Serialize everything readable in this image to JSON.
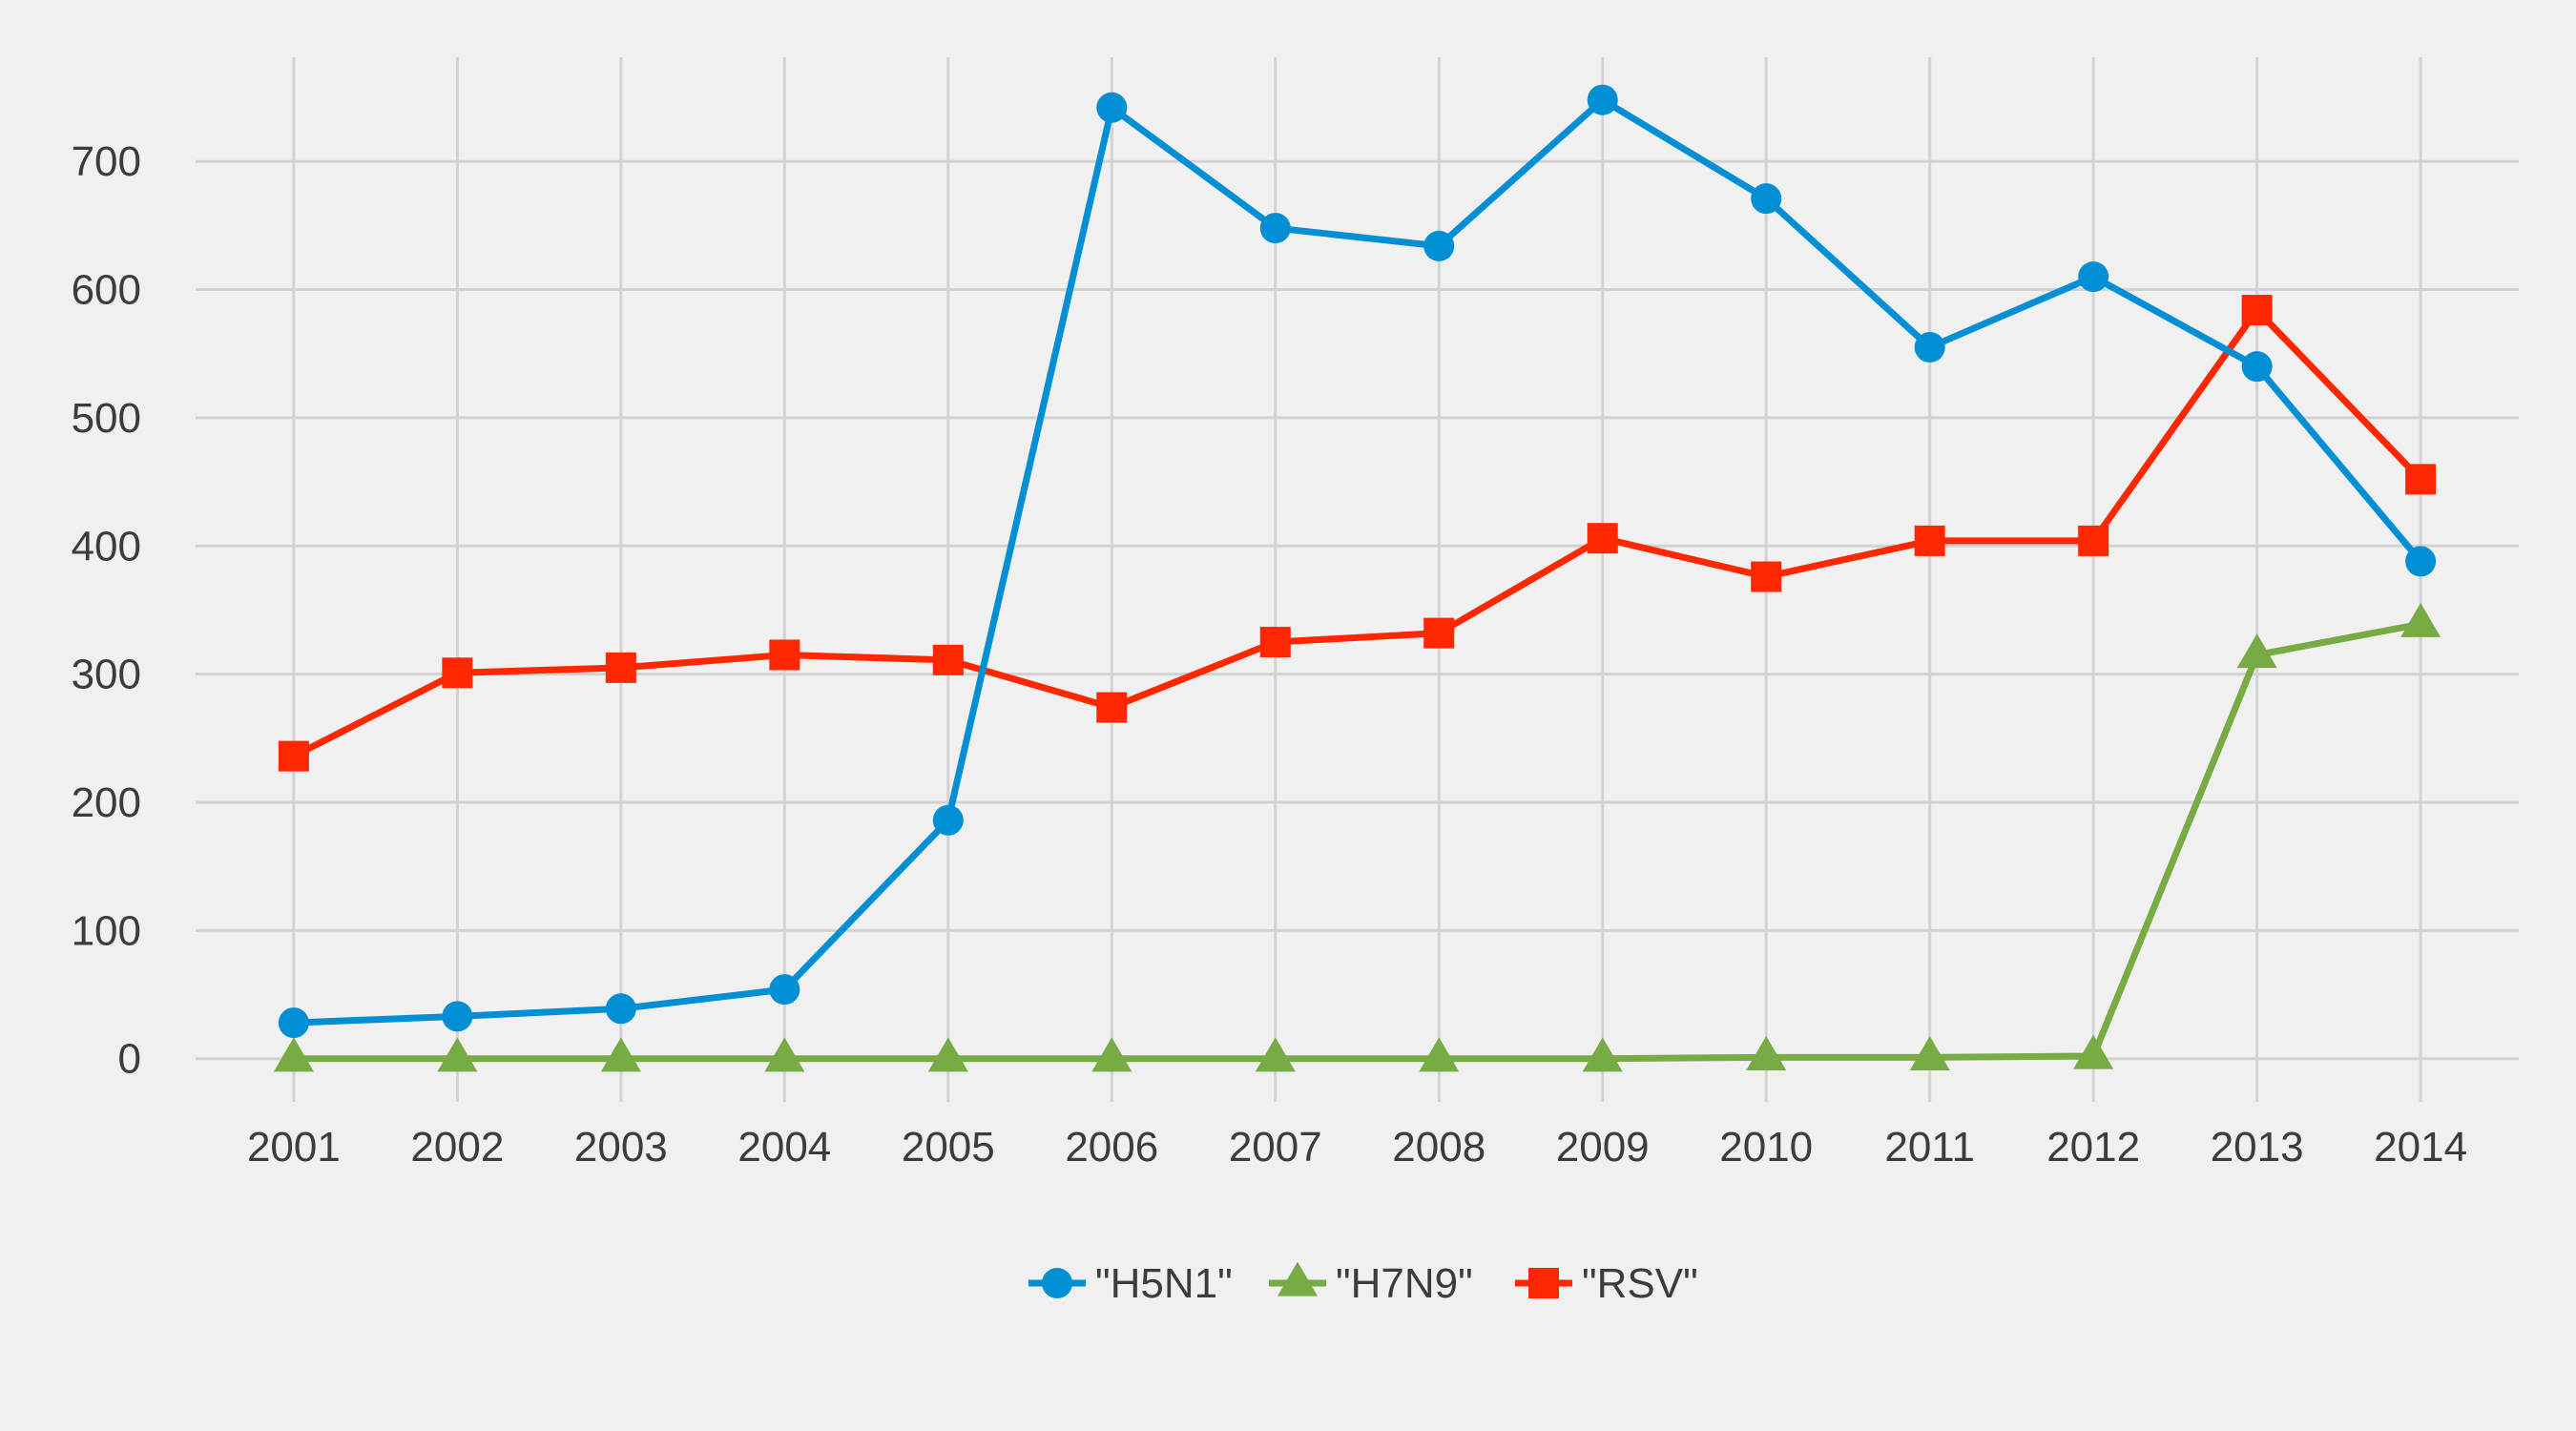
{
  "chart_data": {
    "type": "line",
    "title": "",
    "xlabel": "",
    "ylabel": "",
    "x": [
      2001,
      2002,
      2003,
      2004,
      2005,
      2006,
      2007,
      2008,
      2009,
      2010,
      2011,
      2012,
      2013,
      2014
    ],
    "xtick_labels": [
      "2001",
      "2002",
      "2003",
      "2004",
      "2005",
      "2006",
      "2007",
      "2008",
      "2009",
      "2010",
      "2011",
      "2012",
      "2013",
      "2014"
    ],
    "yticks": [
      0,
      100,
      200,
      300,
      400,
      500,
      600,
      700
    ],
    "ytick_labels": [
      "0",
      "100",
      "200",
      "300",
      "400",
      "500",
      "600",
      "700"
    ],
    "ylim": [
      -30,
      785
    ],
    "xlim": [
      2000.4,
      2014.6
    ],
    "grid": true,
    "legend_position": "bottom-center",
    "series": [
      {
        "name": "\"H5N1\"",
        "color": "#008fd5",
        "marker": "circle",
        "values": [
          28,
          33,
          39,
          54,
          186,
          742,
          648,
          634,
          748,
          671,
          555,
          610,
          540,
          388
        ]
      },
      {
        "name": "\"H7N9\"",
        "color": "#77ab43",
        "marker": "triangle",
        "values": [
          0,
          0,
          0,
          0,
          0,
          0,
          0,
          0,
          0,
          1,
          1,
          2,
          315,
          339
        ]
      },
      {
        "name": "\"RSV\"",
        "color": "#ff2700",
        "marker": "square",
        "values": [
          236,
          301,
          305,
          315,
          311,
          274,
          325,
          332,
          406,
          376,
          404,
          404,
          584,
          452
        ]
      }
    ]
  }
}
